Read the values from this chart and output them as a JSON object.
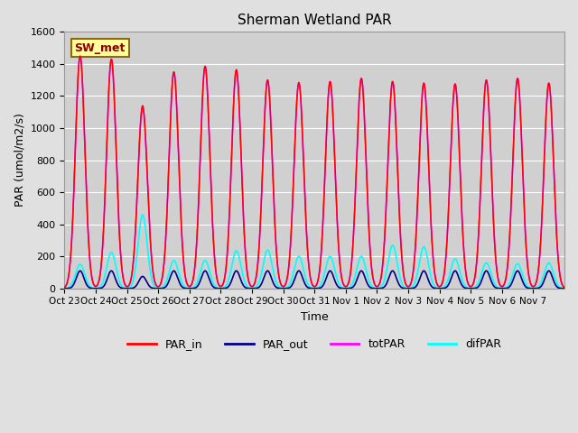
{
  "title": "Sherman Wetland PAR",
  "ylabel": "PAR (umol/m2/s)",
  "xlabel": "Time",
  "ylim": [
    0,
    1600
  ],
  "yticks": [
    0,
    200,
    400,
    600,
    800,
    1000,
    1200,
    1400,
    1600
  ],
  "xtick_labels": [
    "Oct 23",
    "Oct 24",
    "Oct 25",
    "Oct 26",
    "Oct 27",
    "Oct 28",
    "Oct 29",
    "Oct 30",
    "Oct 31",
    "Nov 1",
    "Nov 2",
    "Nov 3",
    "Nov 4",
    "Nov 5",
    "Nov 6",
    "Nov 7"
  ],
  "station_label": "SW_met",
  "fig_facecolor": "#e0e0e0",
  "axes_facecolor": "#d0d0d0",
  "colors": {
    "PAR_in": "#ff0000",
    "PAR_out": "#00008b",
    "totPAR": "#ff00ff",
    "difPAR": "#00ffff"
  },
  "num_days": 16,
  "day_peaks": {
    "PAR_in": [
      1450,
      1430,
      1140,
      1350,
      1385,
      1365,
      1300,
      1285,
      1290,
      1310,
      1290,
      1280,
      1275,
      1300,
      1310,
      1280
    ],
    "totPAR": [
      1450,
      1430,
      1130,
      1350,
      1385,
      1360,
      1300,
      1280,
      1290,
      1310,
      1290,
      1280,
      1275,
      1300,
      1310,
      1280
    ],
    "PAR_out": [
      110,
      110,
      75,
      110,
      110,
      110,
      110,
      110,
      110,
      110,
      110,
      110,
      110,
      110,
      110,
      110
    ],
    "difPAR": [
      150,
      225,
      460,
      175,
      175,
      235,
      240,
      200,
      200,
      200,
      270,
      260,
      185,
      160,
      155,
      160
    ]
  }
}
